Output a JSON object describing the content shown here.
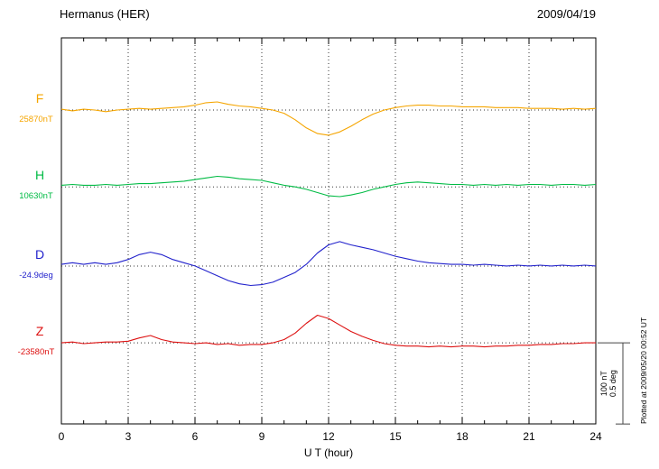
{
  "header": {
    "title": "Hermanus (HER)",
    "date": "2009/04/19"
  },
  "scale_bar": {
    "line1": "100 nT",
    "line2": "0.5 deg"
  },
  "plotted_note": "Plotted at 2009/05/20 00:52 UT",
  "chart_data": {
    "type": "line",
    "title": "Hermanus (HER) magnetogram 2009/04/19",
    "xlabel": "U T (hour)",
    "xlim": [
      0,
      24
    ],
    "xticks": [
      0,
      3,
      6,
      9,
      12,
      15,
      18,
      21,
      24
    ],
    "grid": "dotted vertical gridlines every 3 hours; dotted horizontal baseline per trace",
    "legend_position": "left margin labels",
    "x": [
      0,
      0.5,
      1,
      1.5,
      2,
      2.5,
      3,
      3.5,
      4,
      4.5,
      5,
      5.5,
      6,
      6.5,
      7,
      7.5,
      8,
      8.5,
      9,
      9.5,
      10,
      10.5,
      11,
      11.5,
      12,
      12.5,
      13,
      13.5,
      14,
      14.5,
      15,
      15.5,
      16,
      16.5,
      17,
      17.5,
      18,
      18.5,
      19,
      19.5,
      20,
      20.5,
      21,
      21.5,
      22,
      22.5,
      23,
      23.5,
      24
    ],
    "series": [
      {
        "name": "F",
        "baseline_label": "25870nT",
        "unit": "nT offset from 25870nT",
        "color": "#F5A500",
        "units_per_bar": 100,
        "baseline_frac": 0.187,
        "y": [
          1,
          -1,
          1,
          0,
          -2,
          0,
          1,
          2,
          1,
          2,
          3,
          4,
          6,
          9,
          10,
          7,
          5,
          4,
          2,
          0,
          -4,
          -12,
          -22,
          -29,
          -31,
          -27,
          -20,
          -12,
          -5,
          0,
          3,
          5,
          6,
          6,
          5,
          5,
          4,
          4,
          4,
          3,
          3,
          3,
          2,
          2,
          2,
          1,
          2,
          1,
          2
        ]
      },
      {
        "name": "H",
        "baseline_label": "10630nT",
        "unit": "nT offset from 10630nT",
        "color": "#00BB44",
        "units_per_bar": 100,
        "baseline_frac": 0.386,
        "y": [
          2,
          3,
          2,
          2,
          3,
          2,
          3,
          4,
          4,
          5,
          6,
          7,
          9,
          11,
          13,
          12,
          10,
          9,
          8,
          5,
          2,
          0,
          -3,
          -7,
          -11,
          -12,
          -10,
          -7,
          -3,
          0,
          3,
          5,
          6,
          5,
          4,
          3,
          3,
          2,
          3,
          2,
          3,
          2,
          3,
          3,
          2,
          3,
          3,
          2,
          3
        ]
      },
      {
        "name": "D",
        "baseline_label": "-24.9deg",
        "unit": "deg offset from -24.9deg",
        "color": "#2222CC",
        "units_per_bar": 0.5,
        "baseline_frac": 0.591,
        "y": [
          0.01,
          0.02,
          0.01,
          0.02,
          0.01,
          0.02,
          0.04,
          0.07,
          0.085,
          0.07,
          0.04,
          0.02,
          0,
          -0.03,
          -0.06,
          -0.09,
          -0.11,
          -0.12,
          -0.115,
          -0.1,
          -0.07,
          -0.04,
          0.01,
          0.08,
          0.13,
          0.15,
          0.13,
          0.115,
          0.1,
          0.08,
          0.06,
          0.045,
          0.03,
          0.02,
          0.015,
          0.01,
          0.01,
          0.005,
          0.01,
          0.005,
          0,
          0.005,
          0,
          0.005,
          0,
          0.005,
          0,
          0.005,
          0
        ]
      },
      {
        "name": "Z",
        "baseline_label": "-23580nT",
        "unit": "nT offset from -23580nT",
        "color": "#DD1111",
        "units_per_bar": 100,
        "baseline_frac": 0.79,
        "y": [
          0,
          1,
          -1,
          0,
          1,
          1,
          2,
          6,
          9,
          4,
          1,
          0,
          -1,
          0,
          -2,
          -1,
          -3,
          -2,
          -2,
          0,
          4,
          12,
          24,
          34,
          30,
          22,
          14,
          8,
          3,
          -1,
          -3,
          -4,
          -4,
          -5,
          -4,
          -5,
          -4,
          -4,
          -5,
          -4,
          -4,
          -3,
          -3,
          -2,
          -2,
          -1,
          -1,
          0,
          0
        ]
      }
    ]
  }
}
